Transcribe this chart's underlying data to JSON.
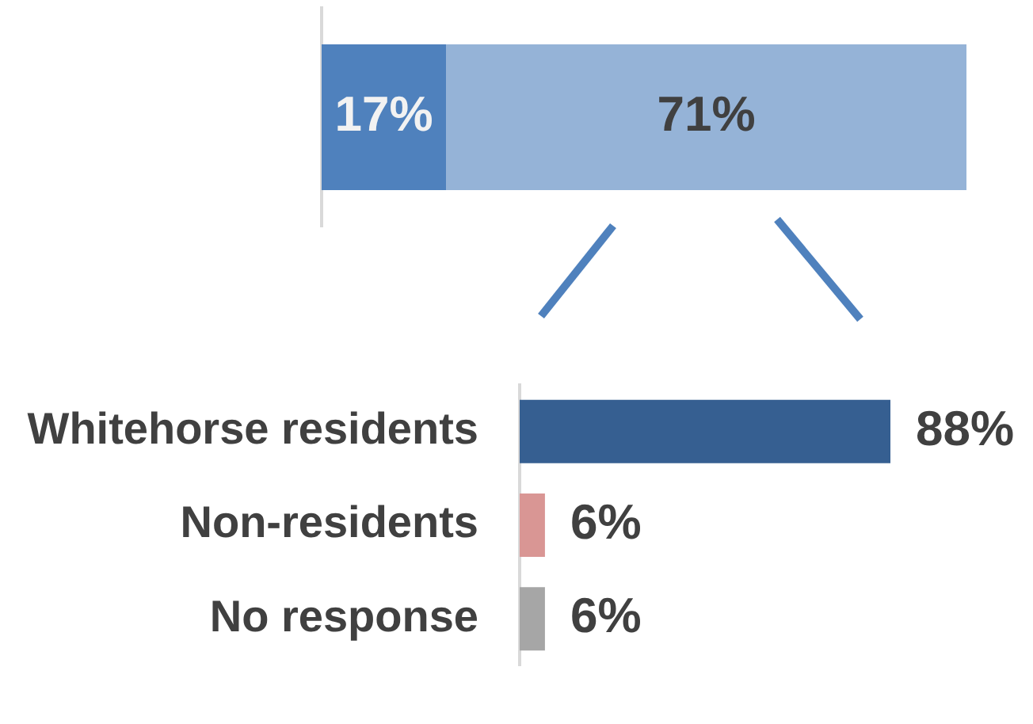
{
  "chart_data": [
    {
      "type": "bar",
      "orientation": "horizontal",
      "stacked": true,
      "categories": [
        null
      ],
      "series": [
        {
          "color": "#4f81bd",
          "values": [
            17
          ],
          "value_labels": [
            "17%"
          ]
        },
        {
          "color": "#95b3d7",
          "values": [
            71
          ],
          "value_labels": [
            "71%"
          ]
        }
      ],
      "tick_labels": false,
      "grid": false,
      "legend": false
    },
    {
      "type": "bar",
      "orientation": "horizontal",
      "categories": [
        "Whitehorse residents",
        "Non-residents",
        "No response"
      ],
      "values": [
        88,
        6,
        6
      ],
      "colors": [
        "#365f91",
        "#d99694",
        "#a6a6a6"
      ],
      "value_labels": [
        "88%",
        "6%",
        "6%"
      ],
      "tick_labels": "y",
      "grid": false,
      "legend": false
    }
  ]
}
